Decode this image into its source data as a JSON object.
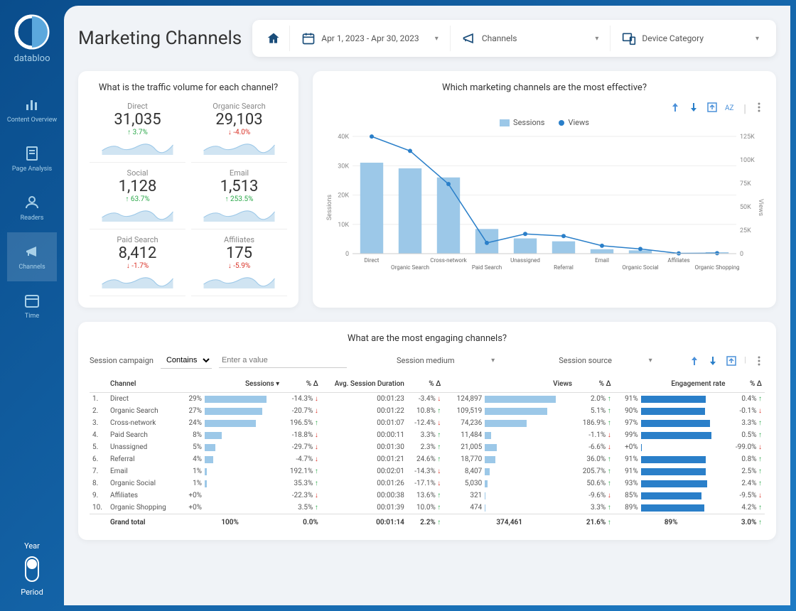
{
  "brand": "databloo",
  "page_title": "Marketing Channels",
  "nav": [
    {
      "key": "content-overview",
      "label": "Content Overview"
    },
    {
      "key": "page-analysis",
      "label": "Page Analysis"
    },
    {
      "key": "readers",
      "label": "Readers"
    },
    {
      "key": "channels",
      "label": "Channels"
    },
    {
      "key": "time",
      "label": "Time"
    }
  ],
  "sidebar_bottom": {
    "year": "Year",
    "period": "Period"
  },
  "header": {
    "date_range": "Apr 1, 2023 - Apr 30, 2023",
    "channels_label": "Channels",
    "device_label": "Device Category"
  },
  "traffic": {
    "title": "What is the traffic volume for each channel?",
    "metrics": [
      {
        "label": "Direct",
        "value": "31,035",
        "delta": "3.7%",
        "dir": "up"
      },
      {
        "label": "Organic Search",
        "value": "29,103",
        "delta": "-4.0%",
        "dir": "down"
      },
      {
        "label": "Social",
        "value": "1,128",
        "delta": "63.7%",
        "dir": "up"
      },
      {
        "label": "Email",
        "value": "1,513",
        "delta": "253.5%",
        "dir": "up"
      },
      {
        "label": "Paid Search",
        "value": "8,412",
        "delta": "-1.7%",
        "dir": "down"
      },
      {
        "label": "Affiliates",
        "value": "175",
        "delta": "-5.9%",
        "dir": "down"
      }
    ]
  },
  "chart": {
    "title": "Which marketing channels are the most effective?",
    "legend": {
      "sessions": "Sessions",
      "views": "Views"
    },
    "y_left_label": "Sessions",
    "y_right_label": "Views",
    "y_left_ticks": [
      "0",
      "10K",
      "20K",
      "30K",
      "40K"
    ],
    "y_right_ticks": [
      "0",
      "25K",
      "50K",
      "75K",
      "100K",
      "125K"
    ],
    "y_left_max": 40000,
    "y_right_max": 125000,
    "categories": [
      "Direct",
      "Organic Search",
      "Cross-network",
      "Paid Search",
      "Unassigned",
      "Referral",
      "Email",
      "Organic Social",
      "Affiliates",
      "Organic Shopping"
    ],
    "sessions": [
      31035,
      29103,
      26000,
      8412,
      5200,
      4200,
      1513,
      1128,
      175,
      474
    ],
    "views": [
      124897,
      109519,
      74236,
      11484,
      21005,
      18770,
      8407,
      5030,
      321,
      474
    ],
    "bar_color": "#9cc8e8",
    "line_color": "#2a7fc9"
  },
  "table": {
    "title": "What are the most engaging channels?",
    "filter_label": "Session campaign",
    "filter_op": "Contains",
    "filter_placeholder": "Enter a value",
    "filter2": "Session medium",
    "filter3": "Session source",
    "columns": [
      "",
      "Channel",
      "Sessions",
      "% Δ",
      "Avg. Session Duration",
      "% Δ",
      "Views",
      "% Δ",
      "Engagement rate",
      "% Δ"
    ],
    "rows": [
      {
        "n": "1.",
        "ch": "Direct",
        "sess_pct": 29,
        "d1": "-14.3%",
        "d1d": "down",
        "dur": "00:01:23",
        "d2": "-3.4%",
        "d2d": "down",
        "views": "124,897",
        "views_pct": 100,
        "d3": "2.0%",
        "d3d": "up",
        "eng": 91,
        "d4": "0.4%",
        "d4d": "up"
      },
      {
        "n": "2.",
        "ch": "Organic Search",
        "sess_pct": 27,
        "d1": "-20.7%",
        "d1d": "down",
        "dur": "00:01:22",
        "d2": "10.8%",
        "d2d": "up",
        "views": "109,519",
        "views_pct": 88,
        "d3": "5.1%",
        "d3d": "up",
        "eng": 90,
        "d4": "-0.1%",
        "d4d": "down"
      },
      {
        "n": "3.",
        "ch": "Cross-network",
        "sess_pct": 24,
        "d1": "196.5%",
        "d1d": "up",
        "dur": "00:01:07",
        "d2": "-12.4%",
        "d2d": "down",
        "views": "74,236",
        "views_pct": 59,
        "d3": "186.9%",
        "d3d": "up",
        "eng": 97,
        "d4": "3.3%",
        "d4d": "up"
      },
      {
        "n": "4.",
        "ch": "Paid Search",
        "sess_pct": 8,
        "d1": "-18.8%",
        "d1d": "down",
        "dur": "00:00:11",
        "d2": "3.3%",
        "d2d": "up",
        "views": "11,484",
        "views_pct": 9,
        "d3": "-1.1%",
        "d3d": "down",
        "eng": 99,
        "d4": "0.5%",
        "d4d": "up"
      },
      {
        "n": "5.",
        "ch": "Unassigned",
        "sess_pct": 5,
        "d1": "-29.7%",
        "d1d": "down",
        "dur": "00:01:30",
        "d2": "2.3%",
        "d2d": "up",
        "views": "21,005",
        "views_pct": 17,
        "d3": "-6.6%",
        "d3d": "down",
        "eng": 0,
        "eng_txt": "+0%",
        "d4": "-99.0%",
        "d4d": "down"
      },
      {
        "n": "6.",
        "ch": "Referral",
        "sess_pct": 4,
        "d1": "-4.7%",
        "d1d": "down",
        "dur": "00:01:21",
        "d2": "24.6%",
        "d2d": "up",
        "views": "18,770",
        "views_pct": 15,
        "d3": "36.0%",
        "d3d": "up",
        "eng": 91,
        "d4": "0.8%",
        "d4d": "up"
      },
      {
        "n": "7.",
        "ch": "Email",
        "sess_pct": 1,
        "d1": "192.1%",
        "d1d": "up",
        "dur": "00:02:01",
        "d2": "-14.3%",
        "d2d": "down",
        "views": "8,407",
        "views_pct": 7,
        "d3": "205.7%",
        "d3d": "up",
        "eng": 91,
        "d4": "2.5%",
        "d4d": "up"
      },
      {
        "n": "8.",
        "ch": "Organic Social",
        "sess_pct": 1,
        "d1": "35.3%",
        "d1d": "up",
        "dur": "00:01:26",
        "d2": "-17.1%",
        "d2d": "down",
        "views": "5,030",
        "views_pct": 4,
        "d3": "50.6%",
        "d3d": "up",
        "eng": 93,
        "d4": "2.4%",
        "d4d": "up"
      },
      {
        "n": "9.",
        "ch": "Affiliates",
        "sess_pct": 0,
        "sess_txt": "+0%",
        "d1": "-22.3%",
        "d1d": "down",
        "dur": "00:00:38",
        "d2": "13.6%",
        "d2d": "up",
        "views": "321",
        "views_pct": 1,
        "d3": "-9.6%",
        "d3d": "down",
        "eng": 85,
        "d4": "-9.5%",
        "d4d": "down"
      },
      {
        "n": "10.",
        "ch": "Organic Shopping",
        "sess_pct": 0,
        "sess_txt": "+0%",
        "d1": "3.5%",
        "d1d": "up",
        "dur": "00:01:39",
        "d2": "10.0%",
        "d2d": "up",
        "views": "474",
        "views_pct": 1,
        "d3": "3.3%",
        "d3d": "up",
        "eng": 89,
        "d4": "4.2%",
        "d4d": "up"
      }
    ],
    "total": {
      "label": "Grand total",
      "sess": "100%",
      "d1": "0.0%",
      "dur": "00:01:14",
      "d2": "2.2%",
      "d2d": "up",
      "views": "374,461",
      "d3": "21.6%",
      "d3d": "up",
      "eng": "89%",
      "d4": "3.0%",
      "d4d": "up"
    }
  }
}
